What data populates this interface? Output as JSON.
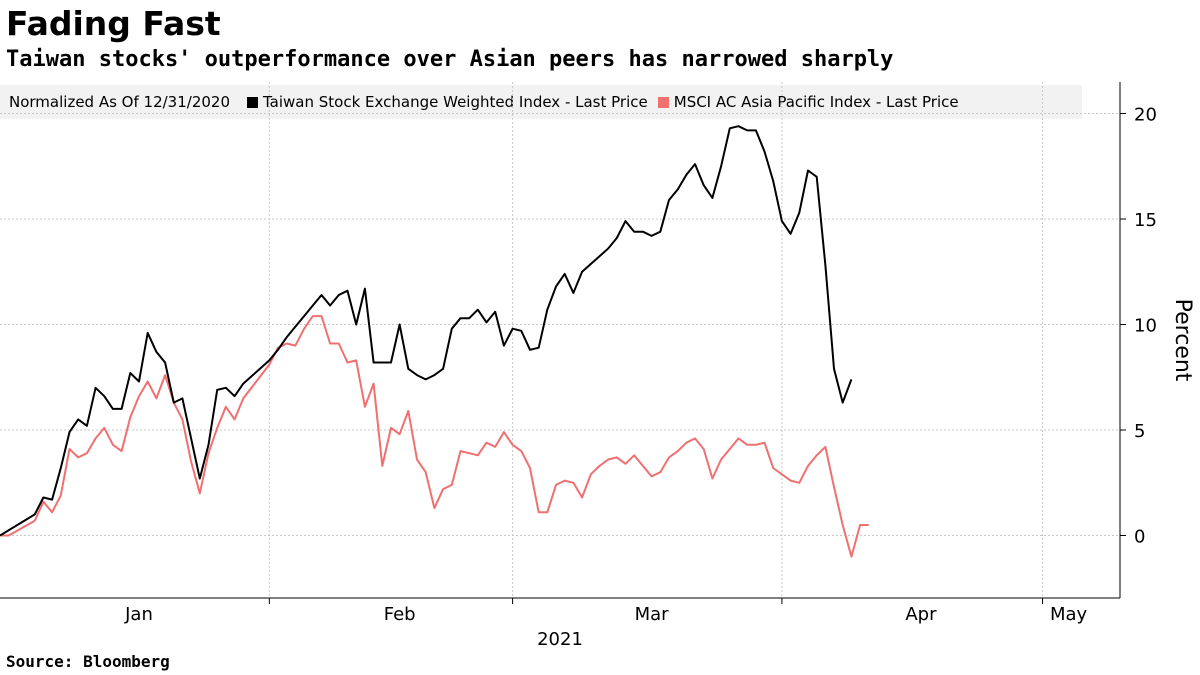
{
  "header": {
    "title": "Fading Fast",
    "subtitle": "Taiwan stocks' outperformance over Asian peers has narrowed sharply"
  },
  "legend": {
    "note": "Normalized As Of 12/31/2020",
    "items": [
      {
        "label": "Taiwan Stock Exchange Weighted Index - Last Price",
        "color": "#000000"
      },
      {
        "label": "MSCI AC Asia Pacific Index - Last Price",
        "color": "#f07070"
      }
    ]
  },
  "footer": {
    "source": "Source: Bloomberg"
  },
  "chart_data": {
    "type": "line",
    "title": "Fading Fast",
    "subtitle": "Taiwan stocks' outperformance over Asian peers has narrowed sharply",
    "xlabel": "2021",
    "ylabel": "Percent",
    "ylim": [
      -3,
      21.5
    ],
    "yticks": [
      0,
      5,
      10,
      15,
      20
    ],
    "xlim": [
      "2020-12-31",
      "2021-05-05"
    ],
    "month_labels": [
      {
        "label": "Jan",
        "date": "2021-01-16"
      },
      {
        "label": "Feb",
        "date": "2021-02-15"
      },
      {
        "label": "Mar",
        "date": "2021-03-16"
      },
      {
        "label": "Apr",
        "date": "2021-04-16"
      },
      {
        "label": "May",
        "date": "2021-05-03"
      }
    ],
    "month_boundaries": [
      "2021-01-31",
      "2021-02-28",
      "2021-03-31",
      "2021-04-30"
    ],
    "grid": true,
    "legend_position": "top",
    "series": [
      {
        "name": "Taiwan Stock Exchange Weighted Index - Last Price",
        "color": "#000000",
        "points": [
          [
            "2020-12-31",
            0.0
          ],
          [
            "2021-01-04",
            1.0
          ],
          [
            "2021-01-05",
            1.8
          ],
          [
            "2021-01-06",
            1.7
          ],
          [
            "2021-01-07",
            3.2
          ],
          [
            "2021-01-08",
            4.9
          ],
          [
            "2021-01-09",
            5.5
          ],
          [
            "2021-01-10",
            5.2
          ],
          [
            "2021-01-11",
            7.0
          ],
          [
            "2021-01-12",
            6.6
          ],
          [
            "2021-01-13",
            6.0
          ],
          [
            "2021-01-14",
            6.0
          ],
          [
            "2021-01-15",
            7.7
          ],
          [
            "2021-01-16",
            7.3
          ],
          [
            "2021-01-17",
            9.6
          ],
          [
            "2021-01-18",
            8.7
          ],
          [
            "2021-01-19",
            8.2
          ],
          [
            "2021-01-20",
            6.3
          ],
          [
            "2021-01-21",
            6.5
          ],
          [
            "2021-01-22",
            4.6
          ],
          [
            "2021-01-23",
            2.7
          ],
          [
            "2021-01-24",
            4.3
          ],
          [
            "2021-01-25",
            6.9
          ],
          [
            "2021-01-26",
            7.0
          ],
          [
            "2021-01-27",
            6.6
          ],
          [
            "2021-01-28",
            7.2
          ],
          [
            "2021-01-31",
            8.3
          ],
          [
            "2021-02-01",
            8.8
          ],
          [
            "2021-02-02",
            9.4
          ],
          [
            "2021-02-03",
            9.9
          ],
          [
            "2021-02-04",
            10.4
          ],
          [
            "2021-02-05",
            10.9
          ],
          [
            "2021-02-06",
            11.4
          ],
          [
            "2021-02-07",
            10.9
          ],
          [
            "2021-02-08",
            11.4
          ],
          [
            "2021-02-09",
            11.6
          ],
          [
            "2021-02-10",
            10.0
          ],
          [
            "2021-02-11",
            11.7
          ],
          [
            "2021-02-12",
            8.2
          ],
          [
            "2021-02-13",
            8.2
          ],
          [
            "2021-02-14",
            8.2
          ],
          [
            "2021-02-15",
            10.0
          ],
          [
            "2021-02-16",
            7.9
          ],
          [
            "2021-02-17",
            7.6
          ],
          [
            "2021-02-18",
            7.4
          ],
          [
            "2021-02-19",
            7.6
          ],
          [
            "2021-02-20",
            7.9
          ],
          [
            "2021-02-21",
            9.8
          ],
          [
            "2021-02-22",
            10.3
          ],
          [
            "2021-02-23",
            10.3
          ],
          [
            "2021-02-24",
            10.7
          ],
          [
            "2021-02-25",
            10.1
          ],
          [
            "2021-02-26",
            10.6
          ],
          [
            "2021-02-27",
            9.0
          ],
          [
            "2021-02-28",
            9.8
          ],
          [
            "2021-03-01",
            9.7
          ],
          [
            "2021-03-02",
            8.8
          ],
          [
            "2021-03-03",
            8.9
          ],
          [
            "2021-03-04",
            10.7
          ],
          [
            "2021-03-05",
            11.8
          ],
          [
            "2021-03-06",
            12.4
          ],
          [
            "2021-03-07",
            11.5
          ],
          [
            "2021-03-08",
            12.5
          ],
          [
            "2021-03-11",
            13.6
          ],
          [
            "2021-03-12",
            14.1
          ],
          [
            "2021-03-13",
            14.9
          ],
          [
            "2021-03-14",
            14.4
          ],
          [
            "2021-03-15",
            14.4
          ],
          [
            "2021-03-16",
            14.2
          ],
          [
            "2021-03-17",
            14.4
          ],
          [
            "2021-03-18",
            15.9
          ],
          [
            "2021-03-19",
            16.4
          ],
          [
            "2021-03-20",
            17.1
          ],
          [
            "2021-03-21",
            17.6
          ],
          [
            "2021-03-22",
            16.6
          ],
          [
            "2021-03-23",
            16.0
          ],
          [
            "2021-03-24",
            17.5
          ],
          [
            "2021-03-25",
            19.3
          ],
          [
            "2021-03-26",
            19.4
          ],
          [
            "2021-03-27",
            19.2
          ],
          [
            "2021-03-28",
            19.2
          ],
          [
            "2021-03-29",
            18.2
          ],
          [
            "2021-03-30",
            16.8
          ],
          [
            "2021-03-31",
            14.9
          ],
          [
            "2021-04-01",
            14.3
          ],
          [
            "2021-04-02",
            15.3
          ],
          [
            "2021-04-03",
            17.3
          ],
          [
            "2021-04-04",
            17.0
          ],
          [
            "2021-04-05",
            12.8
          ],
          [
            "2021-04-06",
            7.9
          ],
          [
            "2021-04-07",
            6.3
          ],
          [
            "2021-04-08",
            7.4
          ]
        ]
      },
      {
        "name": "MSCI AC Asia Pacific Index - Last Price",
        "color": "#f07070",
        "points": [
          [
            "2020-12-31",
            0.0
          ],
          [
            "2021-01-01",
            0.0
          ],
          [
            "2021-01-04",
            0.7
          ],
          [
            "2021-01-05",
            1.6
          ],
          [
            "2021-01-06",
            1.1
          ],
          [
            "2021-01-07",
            1.9
          ],
          [
            "2021-01-08",
            4.1
          ],
          [
            "2021-01-09",
            3.7
          ],
          [
            "2021-01-10",
            3.9
          ],
          [
            "2021-01-11",
            4.6
          ],
          [
            "2021-01-12",
            5.1
          ],
          [
            "2021-01-13",
            4.3
          ],
          [
            "2021-01-14",
            4.0
          ],
          [
            "2021-01-15",
            5.6
          ],
          [
            "2021-01-16",
            6.6
          ],
          [
            "2021-01-17",
            7.3
          ],
          [
            "2021-01-18",
            6.5
          ],
          [
            "2021-01-19",
            7.6
          ],
          [
            "2021-01-20",
            6.3
          ],
          [
            "2021-01-21",
            5.5
          ],
          [
            "2021-01-22",
            3.5
          ],
          [
            "2021-01-23",
            2.0
          ],
          [
            "2021-01-24",
            3.9
          ],
          [
            "2021-01-25",
            5.1
          ],
          [
            "2021-01-26",
            6.1
          ],
          [
            "2021-01-27",
            5.5
          ],
          [
            "2021-01-28",
            6.5
          ],
          [
            "2021-01-31",
            8.1
          ],
          [
            "2021-02-01",
            8.9
          ],
          [
            "2021-02-02",
            9.1
          ],
          [
            "2021-02-03",
            9.0
          ],
          [
            "2021-02-04",
            9.8
          ],
          [
            "2021-02-05",
            10.4
          ],
          [
            "2021-02-06",
            10.4
          ],
          [
            "2021-02-07",
            9.1
          ],
          [
            "2021-02-08",
            9.1
          ],
          [
            "2021-02-09",
            8.2
          ],
          [
            "2021-02-10",
            8.3
          ],
          [
            "2021-02-11",
            6.1
          ],
          [
            "2021-02-12",
            7.2
          ],
          [
            "2021-02-13",
            3.3
          ],
          [
            "2021-02-14",
            5.1
          ],
          [
            "2021-02-15",
            4.8
          ],
          [
            "2021-02-16",
            5.9
          ],
          [
            "2021-02-17",
            3.6
          ],
          [
            "2021-02-18",
            3.0
          ],
          [
            "2021-02-19",
            1.3
          ],
          [
            "2021-02-20",
            2.2
          ],
          [
            "2021-02-21",
            2.4
          ],
          [
            "2021-02-22",
            4.0
          ],
          [
            "2021-02-23",
            3.9
          ],
          [
            "2021-02-24",
            3.8
          ],
          [
            "2021-02-25",
            4.4
          ],
          [
            "2021-02-26",
            4.2
          ],
          [
            "2021-02-27",
            4.9
          ],
          [
            "2021-02-28",
            4.3
          ],
          [
            "2021-03-01",
            4.0
          ],
          [
            "2021-03-02",
            3.2
          ],
          [
            "2021-03-03",
            1.1
          ],
          [
            "2021-03-04",
            1.1
          ],
          [
            "2021-03-05",
            2.4
          ],
          [
            "2021-03-06",
            2.6
          ],
          [
            "2021-03-07",
            2.5
          ],
          [
            "2021-03-08",
            1.8
          ],
          [
            "2021-03-09",
            2.9
          ],
          [
            "2021-03-10",
            3.3
          ],
          [
            "2021-03-11",
            3.6
          ],
          [
            "2021-03-12",
            3.7
          ],
          [
            "2021-03-13",
            3.4
          ],
          [
            "2021-03-14",
            3.8
          ],
          [
            "2021-03-15",
            3.3
          ],
          [
            "2021-03-16",
            2.8
          ],
          [
            "2021-03-17",
            3.0
          ],
          [
            "2021-03-18",
            3.7
          ],
          [
            "2021-03-19",
            4.0
          ],
          [
            "2021-03-20",
            4.4
          ],
          [
            "2021-03-21",
            4.6
          ],
          [
            "2021-03-22",
            4.1
          ],
          [
            "2021-03-23",
            2.7
          ],
          [
            "2021-03-24",
            3.6
          ],
          [
            "2021-03-25",
            4.1
          ],
          [
            "2021-03-26",
            4.6
          ],
          [
            "2021-03-27",
            4.3
          ],
          [
            "2021-03-28",
            4.3
          ],
          [
            "2021-03-29",
            4.4
          ],
          [
            "2021-03-30",
            3.2
          ],
          [
            "2021-03-31",
            2.9
          ],
          [
            "2021-04-01",
            2.6
          ],
          [
            "2021-04-02",
            2.5
          ],
          [
            "2021-04-03",
            3.3
          ],
          [
            "2021-04-04",
            3.8
          ],
          [
            "2021-04-05",
            4.2
          ],
          [
            "2021-04-06",
            2.3
          ],
          [
            "2021-04-07",
            0.5
          ],
          [
            "2021-04-08",
            -1.0
          ],
          [
            "2021-04-09",
            0.5
          ],
          [
            "2021-04-10",
            0.5
          ]
        ]
      }
    ]
  }
}
